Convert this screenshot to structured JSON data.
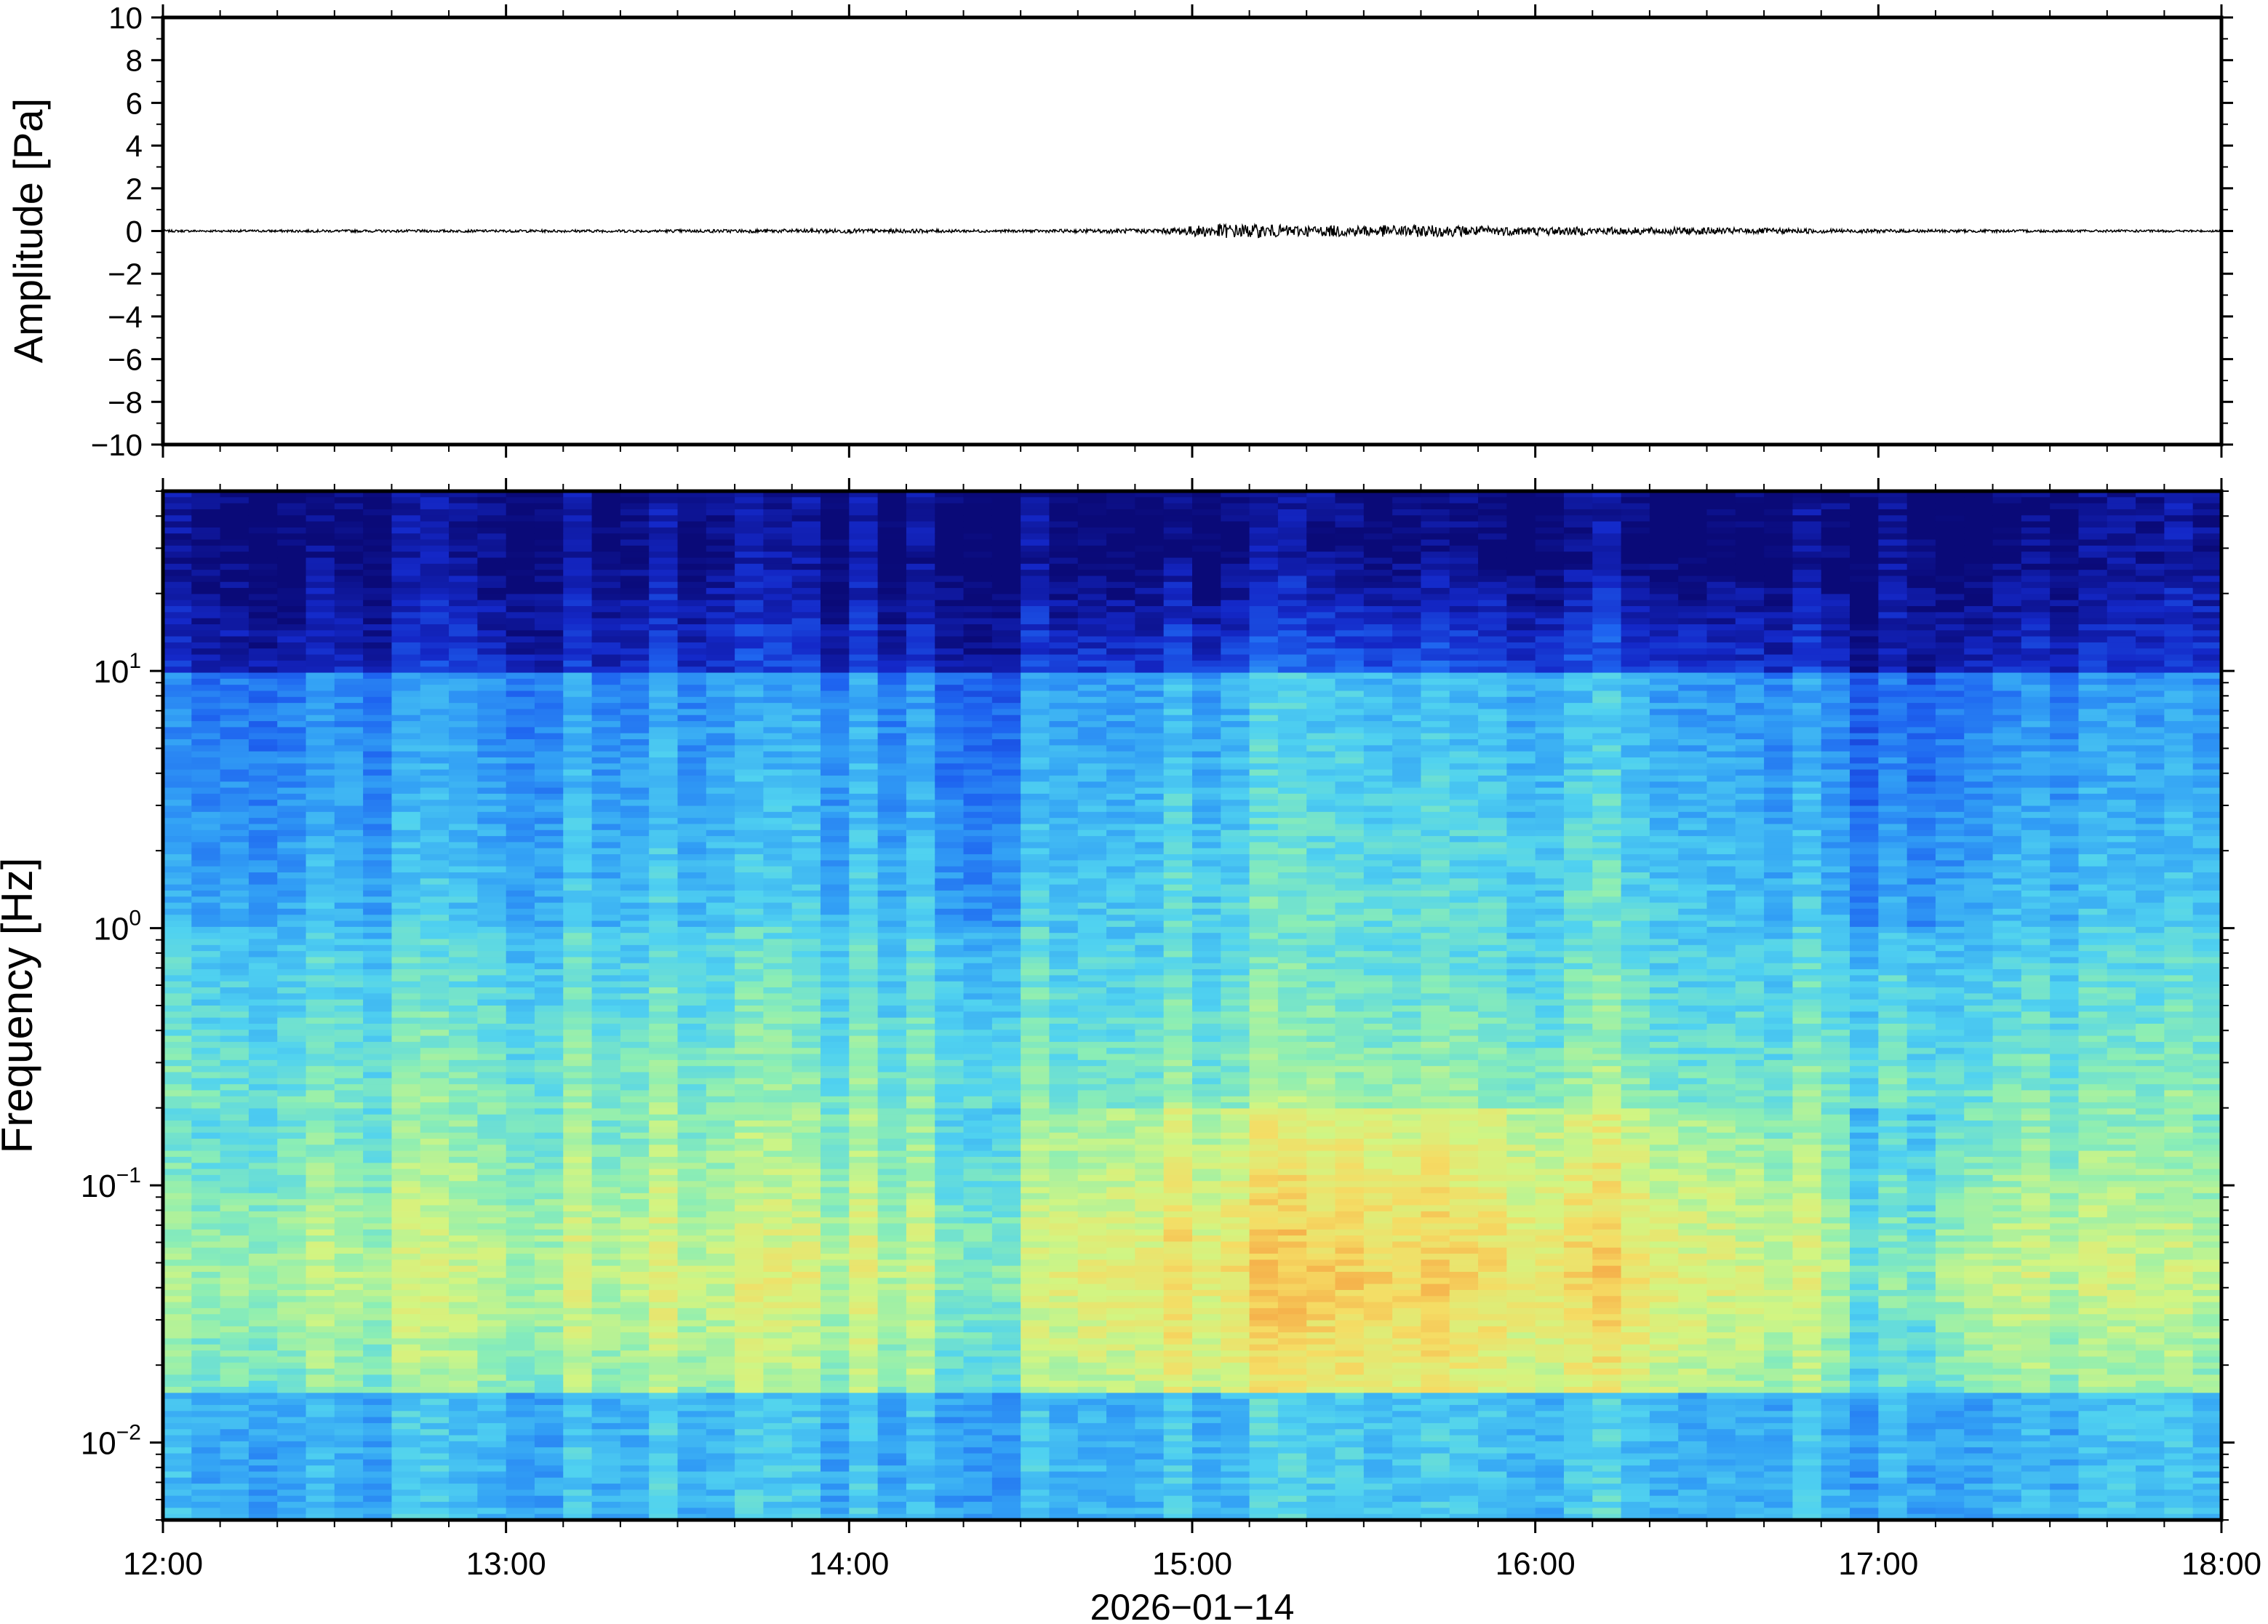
{
  "chart_data": [
    {
      "type": "line",
      "ylabel": "Amplitude [Pa]",
      "ylim": [
        -10,
        10
      ],
      "yticks": [
        "10",
        "8",
        "6",
        "4",
        "2",
        "0",
        "−2",
        "−4",
        "−6",
        "−8",
        "−10"
      ],
      "ytick_values": [
        10,
        8,
        6,
        4,
        2,
        0,
        -2,
        -4,
        -6,
        -8,
        -10
      ],
      "xlim": [
        "12:00",
        "18:00"
      ],
      "grid": false,
      "series": [
        {
          "color": "#000000",
          "x": [
            "12:00",
            "12:30",
            "13:00",
            "13:30",
            "14:00",
            "14:30",
            "14:55",
            "15:05",
            "15:20",
            "15:40",
            "16:00",
            "16:30",
            "17:00",
            "17:30",
            "18:00"
          ],
          "envelope": [
            0.05,
            0.06,
            0.06,
            0.07,
            0.1,
            0.06,
            0.12,
            0.35,
            0.25,
            0.28,
            0.2,
            0.16,
            0.08,
            0.06,
            0.05
          ]
        }
      ]
    },
    {
      "type": "heatmap",
      "ylabel": "Frequency [Hz]",
      "xlabel": "2026−01−14",
      "yscale": "log",
      "ylim": [
        0.005,
        50
      ],
      "yticks": [
        {
          "base": "10",
          "exp": "1",
          "value": 10
        },
        {
          "base": "10",
          "exp": "0",
          "value": 1
        },
        {
          "base": "10",
          "exp": "−1",
          "value": 0.1
        },
        {
          "base": "10",
          "exp": "−2",
          "value": 0.01
        }
      ],
      "xlim": [
        "12:00",
        "18:00"
      ],
      "xticks": [
        "12:00",
        "13:00",
        "14:00",
        "15:00",
        "16:00",
        "17:00",
        "18:00"
      ],
      "colormap": [
        "#0a0a78",
        "#1428c8",
        "#1e64f0",
        "#32a0f5",
        "#50d2f0",
        "#8ceeb4",
        "#d2f582",
        "#f5dc64",
        "#f5a041"
      ],
      "grid": false,
      "time_columns": 72,
      "activity_profile": {
        "times": [
          "12:00",
          "12:20",
          "13:00",
          "14:00",
          "14:12",
          "14:15",
          "14:30",
          "14:35",
          "14:50",
          "15:30",
          "16:00",
          "16:30",
          "16:52",
          "16:55",
          "17:10",
          "17:13",
          "17:30",
          "18:00"
        ],
        "level": [
          0.35,
          0.5,
          0.55,
          0.6,
          0.6,
          0.4,
          0.42,
          0.75,
          0.85,
          0.95,
          0.9,
          0.8,
          0.55,
          0.25,
          0.25,
          0.6,
          0.6,
          0.45
        ]
      }
    }
  ]
}
